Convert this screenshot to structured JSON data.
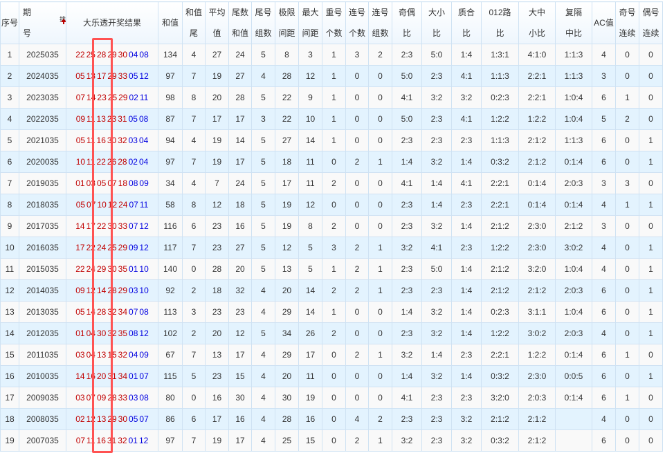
{
  "header": {
    "seq": "序号",
    "period_1": "期",
    "period_2": "号",
    "sort_label": "排序",
    "result": "大乐透开奖结果",
    "cols": [
      [
        "和值"
      ],
      [
        "和值",
        "尾"
      ],
      [
        "平均",
        "值"
      ],
      [
        "尾数",
        "和值"
      ],
      [
        "尾号",
        "组数"
      ],
      [
        "极限",
        "间距"
      ],
      [
        "最大",
        "间距"
      ],
      [
        "重号",
        "个数"
      ],
      [
        "连号",
        "个数"
      ],
      [
        "连号",
        "组数"
      ],
      [
        "奇偶",
        "比"
      ],
      [
        "大小",
        "比"
      ],
      [
        "质合",
        "比"
      ],
      [
        "012路",
        "比"
      ],
      [
        "大中",
        "小比"
      ],
      [
        "复隔",
        "中比"
      ],
      [
        "AC值"
      ],
      [
        "奇号",
        "连续"
      ],
      [
        "偶号",
        "连续"
      ]
    ]
  },
  "colors": {
    "front": "#c00000",
    "back": "#0000e0",
    "highlight_box": "#ff5252"
  },
  "rows": [
    {
      "seq": "1",
      "period": "2025035",
      "front": [
        "22",
        "25",
        "28",
        "29",
        "30"
      ],
      "back": [
        "04",
        "08"
      ],
      "stats": [
        "134",
        "4",
        "27",
        "24",
        "5",
        "8",
        "3",
        "1",
        "3",
        "2",
        "2:3",
        "5:0",
        "1:4",
        "1:3:1",
        "4:1:0",
        "1:1:3",
        "4",
        "0",
        "0"
      ]
    },
    {
      "seq": "2",
      "period": "2024035",
      "front": [
        "05",
        "13",
        "17",
        "29",
        "33"
      ],
      "back": [
        "05",
        "12"
      ],
      "stats": [
        "97",
        "7",
        "19",
        "27",
        "4",
        "28",
        "12",
        "1",
        "0",
        "0",
        "5:0",
        "2:3",
        "4:1",
        "1:1:3",
        "2:2:1",
        "1:1:3",
        "3",
        "0",
        "0"
      ]
    },
    {
      "seq": "3",
      "period": "2023035",
      "front": [
        "07",
        "14",
        "23",
        "25",
        "29"
      ],
      "back": [
        "02",
        "11"
      ],
      "stats": [
        "98",
        "8",
        "20",
        "28",
        "5",
        "22",
        "9",
        "1",
        "0",
        "0",
        "4:1",
        "3:2",
        "3:2",
        "0:2:3",
        "2:2:1",
        "1:0:4",
        "6",
        "1",
        "0"
      ]
    },
    {
      "seq": "4",
      "period": "2022035",
      "front": [
        "09",
        "11",
        "13",
        "23",
        "31"
      ],
      "back": [
        "05",
        "08"
      ],
      "stats": [
        "87",
        "7",
        "17",
        "17",
        "3",
        "22",
        "10",
        "1",
        "0",
        "0",
        "5:0",
        "2:3",
        "4:1",
        "1:2:2",
        "1:2:2",
        "1:0:4",
        "5",
        "2",
        "0"
      ]
    },
    {
      "seq": "5",
      "period": "2021035",
      "front": [
        "05",
        "11",
        "16",
        "30",
        "32"
      ],
      "back": [
        "03",
        "04"
      ],
      "stats": [
        "94",
        "4",
        "19",
        "14",
        "5",
        "27",
        "14",
        "1",
        "0",
        "0",
        "2:3",
        "2:3",
        "2:3",
        "1:1:3",
        "2:1:2",
        "1:1:3",
        "6",
        "0",
        "1"
      ]
    },
    {
      "seq": "6",
      "period": "2020035",
      "front": [
        "10",
        "11",
        "22",
        "26",
        "28"
      ],
      "back": [
        "02",
        "04"
      ],
      "stats": [
        "97",
        "7",
        "19",
        "17",
        "5",
        "18",
        "11",
        "0",
        "2",
        "1",
        "1:4",
        "3:2",
        "1:4",
        "0:3:2",
        "2:1:2",
        "0:1:4",
        "6",
        "0",
        "1"
      ]
    },
    {
      "seq": "7",
      "period": "2019035",
      "front": [
        "01",
        "03",
        "05",
        "07",
        "18"
      ],
      "back": [
        "08",
        "09"
      ],
      "stats": [
        "34",
        "4",
        "7",
        "24",
        "5",
        "17",
        "11",
        "2",
        "0",
        "0",
        "4:1",
        "1:4",
        "4:1",
        "2:2:1",
        "0:1:4",
        "2:0:3",
        "3",
        "3",
        "0"
      ]
    },
    {
      "seq": "8",
      "period": "2018035",
      "front": [
        "05",
        "07",
        "10",
        "12",
        "24"
      ],
      "back": [
        "07",
        "11"
      ],
      "stats": [
        "58",
        "8",
        "12",
        "18",
        "5",
        "19",
        "12",
        "0",
        "0",
        "0",
        "2:3",
        "1:4",
        "2:3",
        "2:2:1",
        "0:1:4",
        "0:1:4",
        "4",
        "1",
        "1"
      ]
    },
    {
      "seq": "9",
      "period": "2017035",
      "front": [
        "14",
        "17",
        "22",
        "30",
        "33"
      ],
      "back": [
        "07",
        "12"
      ],
      "stats": [
        "116",
        "6",
        "23",
        "16",
        "5",
        "19",
        "8",
        "2",
        "0",
        "0",
        "2:3",
        "3:2",
        "1:4",
        "2:1:2",
        "2:3:0",
        "2:1:2",
        "3",
        "0",
        "0"
      ]
    },
    {
      "seq": "10",
      "period": "2016035",
      "front": [
        "17",
        "22",
        "24",
        "25",
        "29"
      ],
      "back": [
        "09",
        "12"
      ],
      "stats": [
        "117",
        "7",
        "23",
        "27",
        "5",
        "12",
        "5",
        "3",
        "2",
        "1",
        "3:2",
        "4:1",
        "2:3",
        "1:2:2",
        "2:3:0",
        "3:0:2",
        "4",
        "0",
        "1"
      ]
    },
    {
      "seq": "11",
      "period": "2015035",
      "front": [
        "22",
        "24",
        "29",
        "30",
        "35"
      ],
      "back": [
        "01",
        "10"
      ],
      "stats": [
        "140",
        "0",
        "28",
        "20",
        "5",
        "13",
        "5",
        "1",
        "2",
        "1",
        "2:3",
        "5:0",
        "1:4",
        "2:1:2",
        "3:2:0",
        "1:0:4",
        "4",
        "0",
        "1"
      ]
    },
    {
      "seq": "12",
      "period": "2014035",
      "front": [
        "09",
        "12",
        "14",
        "28",
        "29"
      ],
      "back": [
        "03",
        "10"
      ],
      "stats": [
        "92",
        "2",
        "18",
        "32",
        "4",
        "20",
        "14",
        "2",
        "2",
        "1",
        "2:3",
        "2:3",
        "1:4",
        "2:1:2",
        "2:1:2",
        "2:0:3",
        "6",
        "0",
        "1"
      ]
    },
    {
      "seq": "13",
      "period": "2013035",
      "front": [
        "05",
        "14",
        "28",
        "32",
        "34"
      ],
      "back": [
        "07",
        "08"
      ],
      "stats": [
        "113",
        "3",
        "23",
        "23",
        "4",
        "29",
        "14",
        "1",
        "0",
        "0",
        "1:4",
        "3:2",
        "1:4",
        "0:2:3",
        "3:1:1",
        "1:0:4",
        "6",
        "0",
        "1"
      ]
    },
    {
      "seq": "14",
      "period": "2012035",
      "front": [
        "01",
        "04",
        "30",
        "32",
        "35"
      ],
      "back": [
        "08",
        "12"
      ],
      "stats": [
        "102",
        "2",
        "20",
        "12",
        "5",
        "34",
        "26",
        "2",
        "0",
        "0",
        "2:3",
        "3:2",
        "1:4",
        "1:2:2",
        "3:0:2",
        "2:0:3",
        "4",
        "0",
        "1"
      ]
    },
    {
      "seq": "15",
      "period": "2011035",
      "front": [
        "03",
        "04",
        "13",
        "15",
        "32"
      ],
      "back": [
        "04",
        "09"
      ],
      "stats": [
        "67",
        "7",
        "13",
        "17",
        "4",
        "29",
        "17",
        "0",
        "2",
        "1",
        "3:2",
        "1:4",
        "2:3",
        "2:2:1",
        "1:2:2",
        "0:1:4",
        "6",
        "1",
        "0"
      ]
    },
    {
      "seq": "16",
      "period": "2010035",
      "front": [
        "14",
        "16",
        "20",
        "31",
        "34"
      ],
      "back": [
        "01",
        "07"
      ],
      "stats": [
        "115",
        "5",
        "23",
        "15",
        "4",
        "20",
        "11",
        "0",
        "0",
        "0",
        "1:4",
        "3:2",
        "1:4",
        "0:3:2",
        "2:3:0",
        "0:0:5",
        "6",
        "0",
        "1"
      ]
    },
    {
      "seq": "17",
      "period": "2009035",
      "front": [
        "03",
        "07",
        "09",
        "28",
        "33"
      ],
      "back": [
        "03",
        "08"
      ],
      "stats": [
        "80",
        "0",
        "16",
        "30",
        "4",
        "30",
        "19",
        "0",
        "0",
        "0",
        "4:1",
        "2:3",
        "2:3",
        "3:2:0",
        "2:0:3",
        "0:1:4",
        "6",
        "1",
        "0"
      ]
    },
    {
      "seq": "18",
      "period": "2008035",
      "front": [
        "02",
        "12",
        "13",
        "29",
        "30"
      ],
      "back": [
        "05",
        "07"
      ],
      "stats": [
        "86",
        "6",
        "17",
        "16",
        "4",
        "28",
        "16",
        "0",
        "4",
        "2",
        "2:3",
        "2:3",
        "3:2",
        "2:1:2",
        "2:1:2",
        "",
        "4",
        "0",
        "0"
      ]
    },
    {
      "seq": "19",
      "period": "2007035",
      "front": [
        "07",
        "11",
        "16",
        "31",
        "32"
      ],
      "back": [
        "01",
        "12"
      ],
      "stats": [
        "97",
        "7",
        "19",
        "17",
        "4",
        "25",
        "15",
        "0",
        "2",
        "1",
        "3:2",
        "2:3",
        "3:2",
        "0:3:2",
        "2:1:2",
        "",
        "6",
        "0",
        "0"
      ]
    }
  ]
}
